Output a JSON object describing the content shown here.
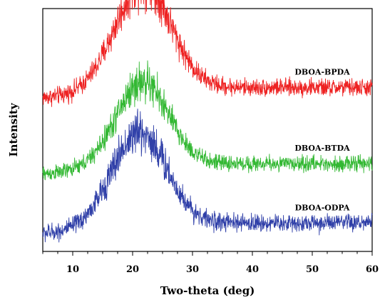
{
  "chart_data": {
    "type": "line",
    "xlabel": "Two-theta (deg)",
    "ylabel": "Intensity",
    "xlim": [
      5,
      60
    ],
    "x_ticks": [
      10,
      20,
      30,
      40,
      50,
      60
    ],
    "y_ticks_labeled": false,
    "grid": false,
    "legend": "none",
    "series": [
      {
        "name": "DBOA-BPDA",
        "color": "#ee2222",
        "baseline": 0.73,
        "peak_height": 0.62,
        "peak_center": 21.8,
        "peak_width": 4.6,
        "tail_level": 0.06,
        "noise": 0.085
      },
      {
        "name": "DBOA-BTDA",
        "color": "#33b833",
        "baseline": 0.32,
        "peak_height": 0.5,
        "peak_center": 21.7,
        "peak_width": 4.3,
        "tail_level": 0.06,
        "noise": 0.075
      },
      {
        "name": "DBOA-ODPA",
        "color": "#2f3fa8",
        "baseline": 0.0,
        "peak_height": 0.55,
        "peak_center": 21.2,
        "peak_width": 4.5,
        "tail_level": 0.06,
        "noise": 0.085
      }
    ]
  }
}
